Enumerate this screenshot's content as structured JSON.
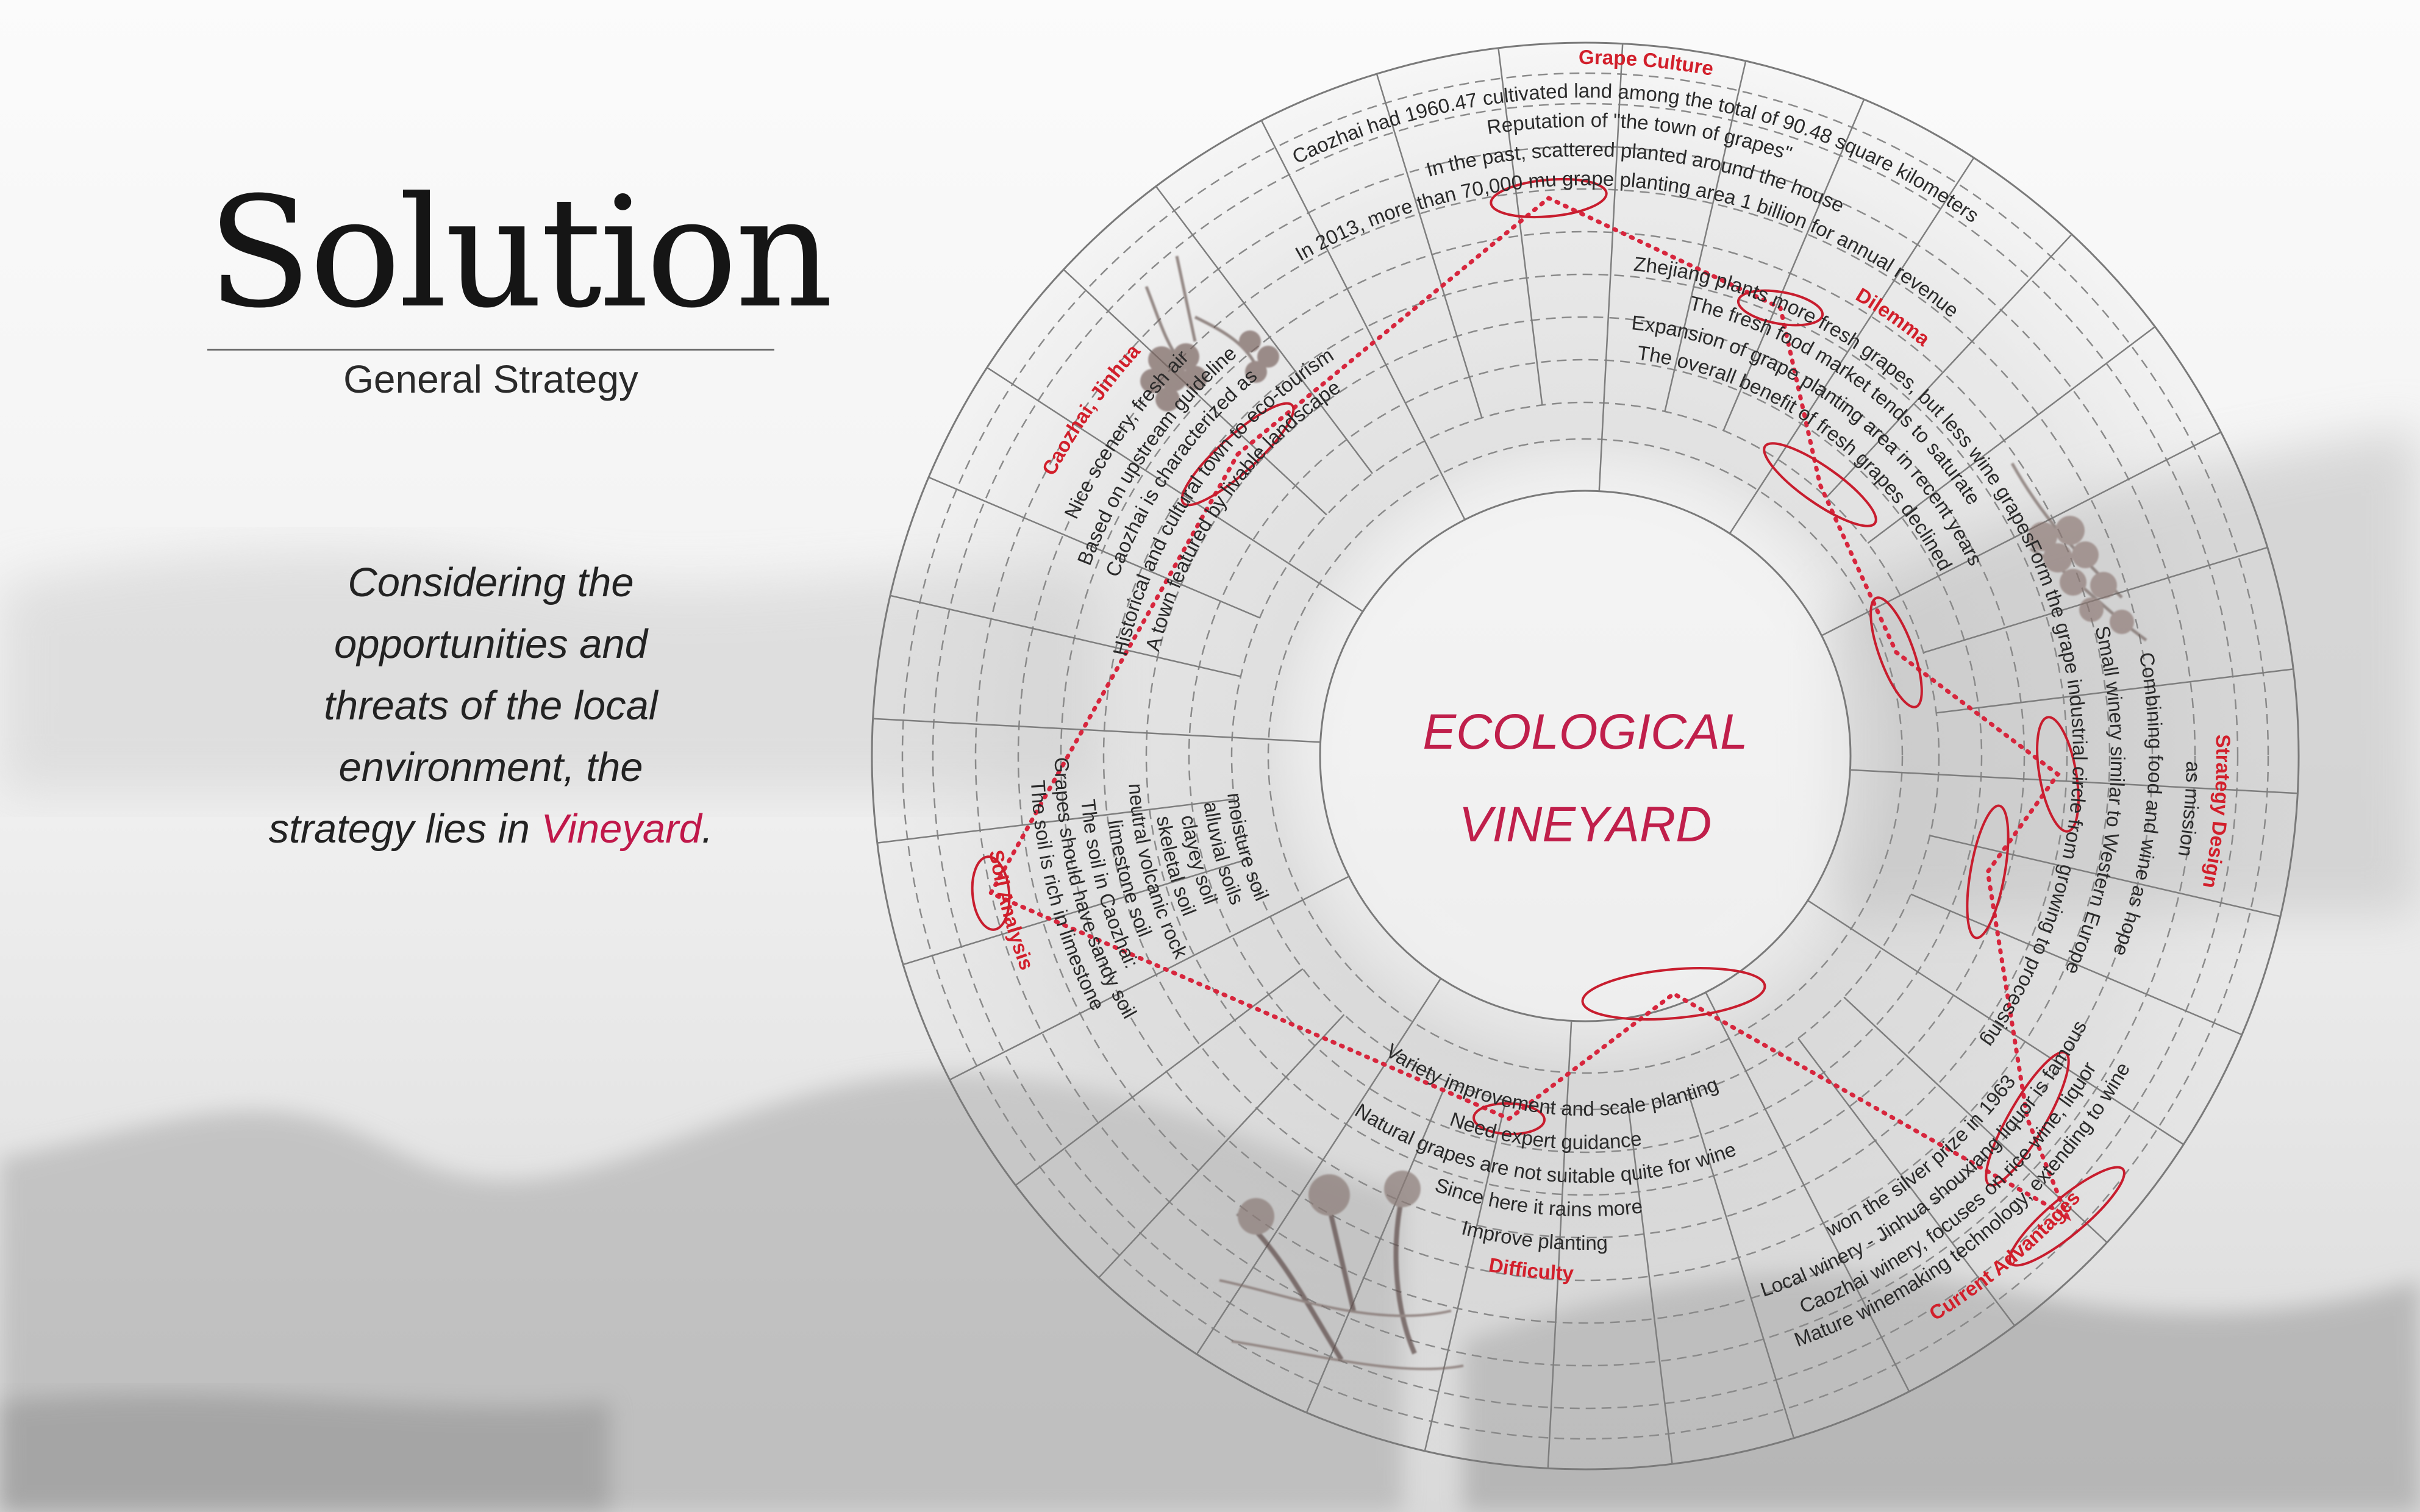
{
  "title": "Solution",
  "subtitle": "General Strategy",
  "intro": {
    "text": "Considering the opportunities and threats of the local environment, the strategy lies in",
    "highlight": "Vineyard",
    "end": "."
  },
  "center": {
    "line1": "ECOLOGICAL",
    "line2": "VINEYARD"
  },
  "colors": {
    "accent": "#c0184a",
    "label_red": "#d21f2b",
    "dots": "#d7263d"
  },
  "categories": [
    {
      "label": "Grape Culture",
      "lines": [
        "Caozhai had 1960.47 cultivated land among the total of 90.48 square kilometers",
        "Reputation of \"the town of grapes\"",
        "In the past, scattered  planted around the house",
        "In 2013, more than 70,000 mu grape planting area 1 billion for annual revenue"
      ]
    },
    {
      "label": "Dilemma",
      "lines": [
        "Zhejiang plants more fresh grapes, but less wine grapes",
        "The fresh food market tends to saturate",
        "Expansion of grape planting area in recent years",
        "The overall benefit of fresh grapes declined"
      ]
    },
    {
      "label": "Strategy Design",
      "lines": [
        "Form the grape industrial circle from growing to processing",
        "Small winery similar to Western Europe",
        "Combining food and wine as hope",
        "as mission"
      ]
    },
    {
      "label": "Current Advantages",
      "lines": [
        "Mature winemaking technology, extending to wine",
        "Caozhai winery, focuses on rice wine, liquor",
        "Local winery - Jinhua shouxiang liquor is famous",
        "won the silver prize in 1963"
      ]
    },
    {
      "label": "Difficulty",
      "lines": [
        "Variety improvement and scale planting",
        "Need expert guidance",
        "Natural grapes are not suitable quite for wine",
        "Since here it rains more",
        "Improve planting"
      ]
    },
    {
      "label": "Soil Analysis",
      "lines": [
        "The soil is rich in limestone",
        "Grapes should have sandy soil",
        "The soil in Caozhai:",
        "limestone soil",
        "neutral volcanic rock",
        "skeletal soil",
        "clayey soil",
        "alluvial soils",
        "moisture soil"
      ]
    },
    {
      "label": "Caozhai, Jinhua",
      "lines": [
        "Nice scenery, fresh air",
        "Based on upstream guideline",
        "Caozhai is characterized as",
        "Historical and cultural town to eco-tourism",
        "A town featured by livable landscape"
      ]
    }
  ]
}
